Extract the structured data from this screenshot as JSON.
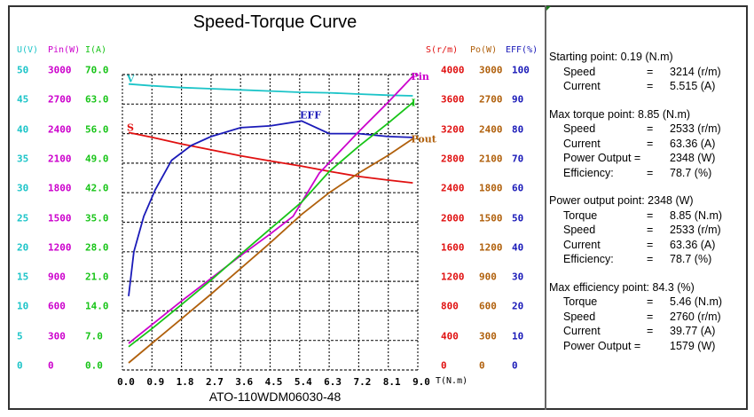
{
  "colors": {
    "voltage": "#1cc4c8",
    "input_power": "#cc00cc",
    "current": "#18c418",
    "speed": "#e01010",
    "output_power": "#b0600c",
    "efficiency": "#1a1ab8"
  },
  "chart_data": {
    "type": "line",
    "title": "Speed-Torque Curve",
    "subtitle": "ATO-110WDM06030-48",
    "xlabel": "T(N.m)",
    "xlim": [
      0,
      9
    ],
    "x_ticks": [
      "0.0",
      "0.9",
      "1.8",
      "2.7",
      "3.6",
      "4.5",
      "5.4",
      "6.3",
      "7.2",
      "8.1",
      "9.0"
    ],
    "grid": true,
    "left_axes": [
      {
        "label": "U(V)",
        "color_key": "voltage",
        "range": [
          0,
          50
        ],
        "ticks": [
          "50",
          "45",
          "40",
          "35",
          "30",
          "25",
          "20",
          "15",
          "10",
          "5",
          "0"
        ]
      },
      {
        "label": "Pin(W)",
        "color_key": "input_power",
        "range": [
          0,
          3000
        ],
        "ticks": [
          "3000",
          "2700",
          "2400",
          "2100",
          "1800",
          "1500",
          "1200",
          "900",
          "600",
          "300",
          "0"
        ]
      },
      {
        "label": "I(A)",
        "color_key": "current",
        "range": [
          0,
          70
        ],
        "ticks": [
          "70.0",
          "63.0",
          "56.0",
          "49.0",
          "42.0",
          "35.0",
          "28.0",
          "21.0",
          "14.0",
          "7.0",
          "0.0"
        ]
      }
    ],
    "right_axes": [
      {
        "label": "S(r/m)",
        "color_key": "speed",
        "range": [
          0,
          4000
        ],
        "ticks": [
          "4000",
          "3600",
          "3200",
          "2800",
          "2400",
          "2000",
          "1600",
          "1200",
          "800",
          "400",
          "0"
        ]
      },
      {
        "label": "Po(W)",
        "color_key": "output_power",
        "range": [
          0,
          3000
        ],
        "ticks": [
          "3000",
          "2700",
          "2400",
          "2100",
          "1800",
          "1500",
          "1200",
          "900",
          "600",
          "300",
          "0"
        ]
      },
      {
        "label": "EFF(%)",
        "color_key": "efficiency",
        "range": [
          0,
          100
        ],
        "ticks": [
          "100",
          "90",
          "80",
          "70",
          "60",
          "50",
          "40",
          "30",
          "20",
          "10",
          "0"
        ]
      }
    ],
    "series": [
      {
        "name": "V",
        "label": "V",
        "color_key": "voltage",
        "range": [
          0,
          50
        ],
        "label_at": "start",
        "x": [
          0.19,
          0.9,
          1.8,
          2.7,
          3.6,
          4.5,
          5.4,
          6.3,
          7.2,
          8.1,
          8.85
        ],
        "y": [
          48.4,
          48.1,
          47.8,
          47.6,
          47.4,
          47.2,
          47.0,
          46.9,
          46.7,
          46.5,
          46.4
        ]
      },
      {
        "name": "S",
        "label": "S",
        "color_key": "speed",
        "range": [
          0,
          4000
        ],
        "label_at": "start",
        "x": [
          0.19,
          0.9,
          1.8,
          2.7,
          3.6,
          4.5,
          5.46,
          6.3,
          7.2,
          8.1,
          8.85
        ],
        "y": [
          3214,
          3150,
          3060,
          2980,
          2900,
          2830,
          2760,
          2690,
          2620,
          2570,
          2533
        ]
      },
      {
        "name": "EFF",
        "label": "EFF",
        "color_key": "efficiency",
        "range": [
          0,
          100
        ],
        "label_at": "peak",
        "x": [
          0.19,
          0.35,
          0.65,
          1.0,
          1.5,
          2.1,
          2.7,
          3.6,
          4.5,
          5.46,
          6.3,
          7.2,
          8.1,
          8.85
        ],
        "y": [
          25,
          40,
          52,
          61,
          71,
          76,
          79,
          82,
          82.6,
          84.3,
          80,
          80,
          79,
          78.7
        ]
      },
      {
        "name": "Pin",
        "label": "Pin",
        "color_key": "input_power",
        "range": [
          0,
          3000
        ],
        "label_at": "end",
        "x": [
          0.19,
          0.9,
          1.8,
          2.7,
          3.6,
          4.5,
          5.2,
          6.0,
          7.2,
          8.1,
          8.85
        ],
        "y": [
          270,
          460,
          700,
          930,
          1160,
          1380,
          1560,
          2000,
          2420,
          2720,
          2983
        ]
      },
      {
        "name": "I",
        "label": "I",
        "color_key": "current",
        "range": [
          0,
          70
        ],
        "label_at": "end",
        "x": [
          0.19,
          0.9,
          1.8,
          2.7,
          3.6,
          4.5,
          5.46,
          6.3,
          7.2,
          8.1,
          8.85
        ],
        "y": [
          5.515,
          9.8,
          15.5,
          21.3,
          27.4,
          33.4,
          39.77,
          47.0,
          53.0,
          58.5,
          63.36
        ]
      },
      {
        "name": "Pout",
        "label": "Pout",
        "color_key": "output_power",
        "range": [
          0,
          3000
        ],
        "label_at": "end",
        "x": [
          0.19,
          0.9,
          1.8,
          2.7,
          3.6,
          4.5,
          5.46,
          6.3,
          7.2,
          8.1,
          8.85
        ],
        "y": [
          72,
          270,
          520,
          770,
          1030,
          1290,
          1579,
          1800,
          2000,
          2180,
          2348
        ]
      }
    ]
  },
  "info_panel": {
    "sections": [
      {
        "heading": "Starting point: 0.19 (N.m)",
        "rows": [
          {
            "key": "Speed",
            "eq": "=",
            "value": "3214 (r/m)"
          },
          {
            "key": "Current",
            "eq": "=",
            "value": "5.515 (A)"
          }
        ]
      },
      {
        "heading": "Max torque point: 8.85 (N.m)",
        "rows": [
          {
            "key": "Speed",
            "eq": "=",
            "value": "2533 (r/m)"
          },
          {
            "key": "Current",
            "eq": "=",
            "value": "63.36 (A)"
          },
          {
            "key": "Power Output =",
            "eq": "",
            "value": "2348 (W)"
          },
          {
            "key": "Efficiency:",
            "eq": "=",
            "value": " 78.7 (%)"
          }
        ]
      },
      {
        "heading": "Power output point: 2348 (W)",
        "rows": [
          {
            "key": "Torque",
            "eq": "=",
            "value": "8.85 (N.m)"
          },
          {
            "key": "Speed",
            "eq": "=",
            "value": "2533 (r/m)"
          },
          {
            "key": "Current",
            "eq": "=",
            "value": "63.36 (A)"
          },
          {
            "key": "Efficiency:",
            "eq": "=",
            "value": " 78.7 (%)"
          }
        ]
      },
      {
        "heading": "Max efficiency point: 84.3 (%)",
        "rows": [
          {
            "key": "Torque",
            "eq": "=",
            "value": "5.46 (N.m)"
          },
          {
            "key": "Speed",
            "eq": "=",
            "value": "2760 (r/m)"
          },
          {
            "key": "Current",
            "eq": "=",
            "value": "39.77 (A)"
          },
          {
            "key": "Power Output =",
            "eq": "",
            "value": " 1579 (W)"
          }
        ]
      }
    ]
  }
}
